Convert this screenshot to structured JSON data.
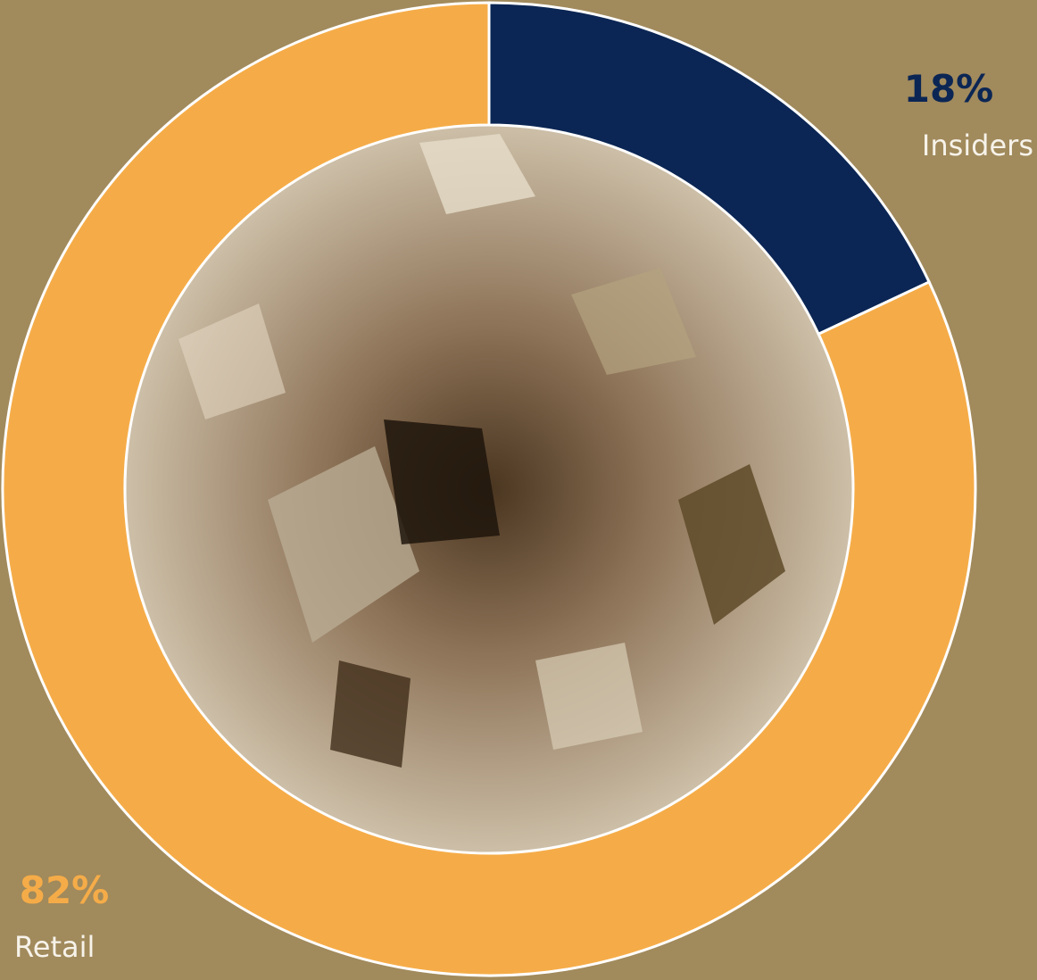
{
  "chart_data": {
    "type": "donut",
    "categories": [
      "Insiders",
      "Retail"
    ],
    "values": [
      18,
      82
    ],
    "value_labels": [
      "18%",
      "82%"
    ],
    "colors": [
      "#0b2654",
      "#f5ac48"
    ]
  }
}
